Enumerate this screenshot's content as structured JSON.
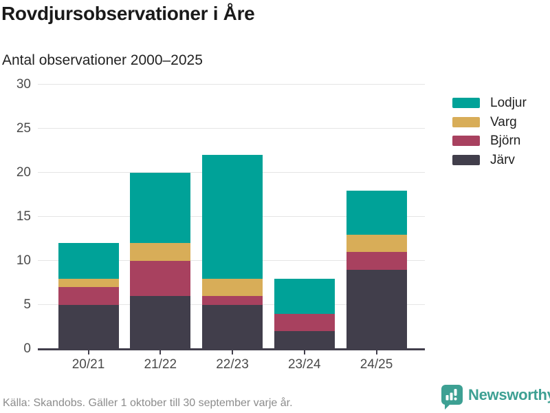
{
  "header": {
    "title": "Rovdjursobservationer i Åre",
    "subtitle": "Antal observationer 2000–2025"
  },
  "footer": {
    "source": "Källa: Skandobs. Gäller 1 oktober till 30 september varje år.",
    "brand": "Newsworthy"
  },
  "colors": {
    "lodjur": "#00A298",
    "varg": "#D8AD58",
    "bjorn": "#A8415F",
    "jarv": "#413E4B",
    "brand_teal": "#3DA093",
    "grid": "#E5E5E5",
    "axis": "#413E4B",
    "title_text": "#1A1A1A",
    "tick_text": "#4A4A4A",
    "muted_text": "#8C8C8C"
  },
  "chart_data": {
    "type": "bar",
    "stacked": true,
    "title": "Rovdjursobservationer i Åre",
    "subtitle": "Antal observationer 2000–2025",
    "categories": [
      "20/21",
      "21/22",
      "22/23",
      "23/24",
      "24/25"
    ],
    "series": [
      {
        "name": "Lodjur",
        "color": "#00A298",
        "values": [
          4,
          8,
          14,
          4,
          5
        ]
      },
      {
        "name": "Varg",
        "color": "#D8AD58",
        "values": [
          1,
          2,
          2,
          0,
          2
        ]
      },
      {
        "name": "Björn",
        "color": "#A8415F",
        "values": [
          2,
          4,
          1,
          2,
          2
        ]
      },
      {
        "name": "Järv",
        "color": "#413E4B",
        "values": [
          5,
          6,
          5,
          2,
          9
        ]
      }
    ],
    "stack_order_bottom_to_top": [
      "Järv",
      "Björn",
      "Varg",
      "Lodjur"
    ],
    "legend_order": [
      "Lodjur",
      "Varg",
      "Björn",
      "Järv"
    ],
    "totals": [
      12,
      20,
      22,
      8,
      18
    ],
    "ylim": [
      0,
      30
    ],
    "yticks": [
      0,
      5,
      10,
      15,
      20,
      25,
      30
    ],
    "grid": true,
    "legend_position": "right",
    "xlabel": "",
    "ylabel": ""
  }
}
